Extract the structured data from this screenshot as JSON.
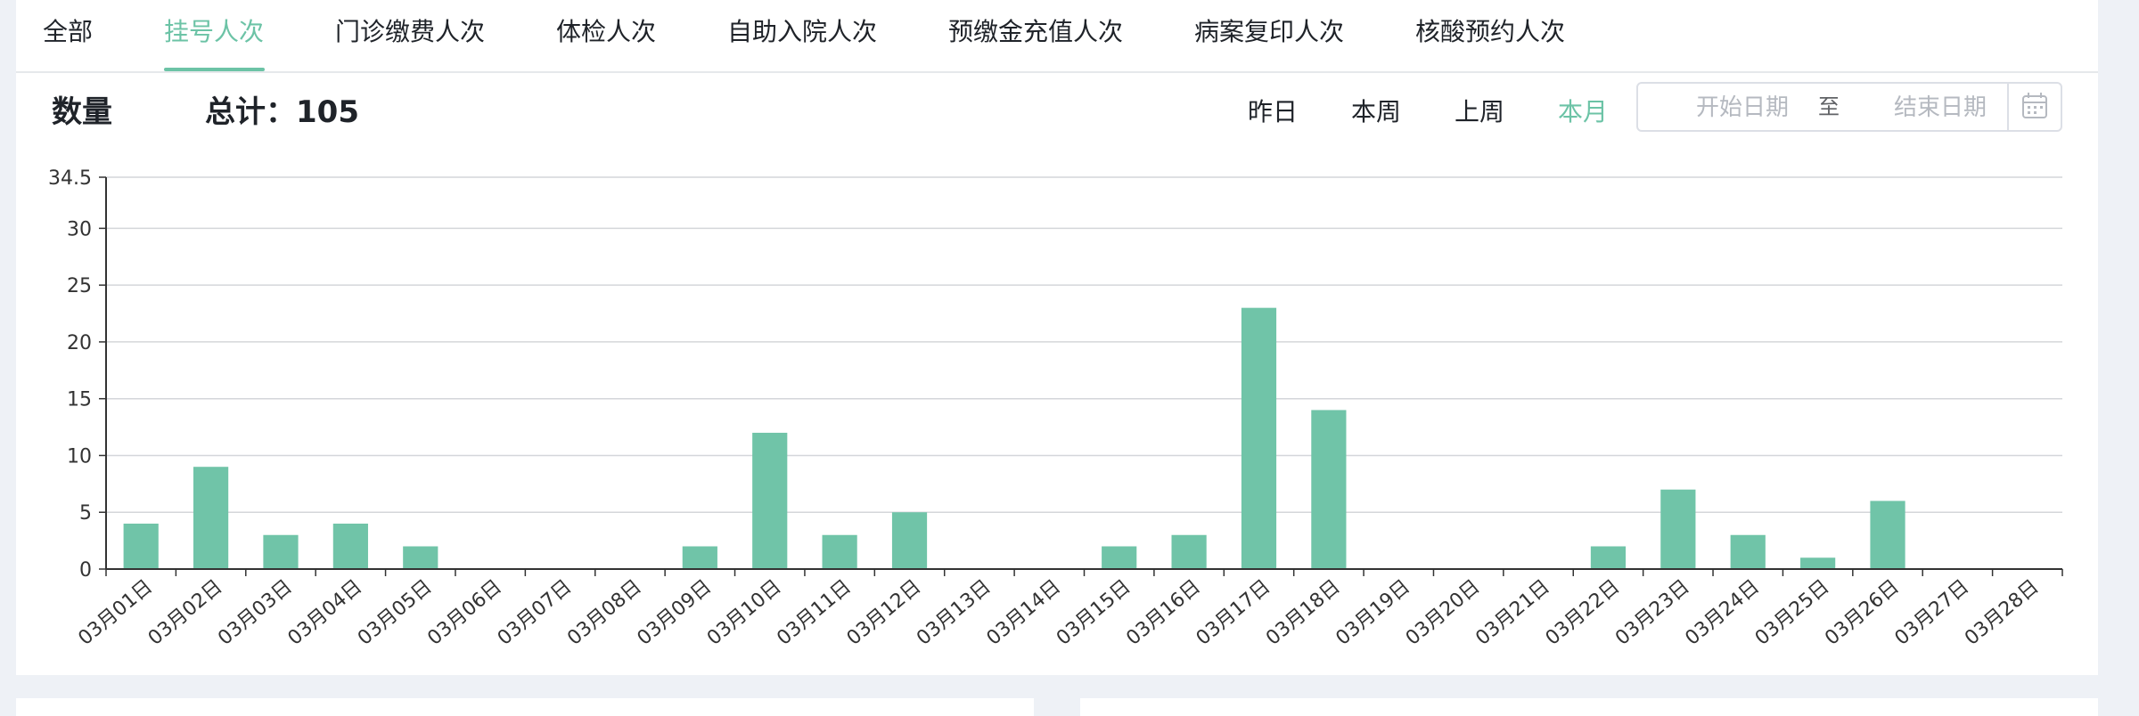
{
  "tabs": [
    {
      "label": "全部",
      "active": false
    },
    {
      "label": "挂号人次",
      "active": true
    },
    {
      "label": "门诊缴费人次",
      "active": false
    },
    {
      "label": "体检人次",
      "active": false
    },
    {
      "label": "自助入院人次",
      "active": false
    },
    {
      "label": "预缴金充值人次",
      "active": false
    },
    {
      "label": "病案复印人次",
      "active": false
    },
    {
      "label": "核酸预约人次",
      "active": false
    }
  ],
  "summary": {
    "quantity_label": "数量",
    "total_label": "总计：105"
  },
  "ranges": [
    {
      "label": "昨日",
      "active": false
    },
    {
      "label": "本周",
      "active": false
    },
    {
      "label": "上周",
      "active": false
    },
    {
      "label": "本月",
      "active": true
    }
  ],
  "date_range": {
    "start_placeholder": "开始日期",
    "separator": "至",
    "end_placeholder": "结束日期"
  },
  "icons": {
    "calendar": "calendar-icon"
  },
  "colors": {
    "accent": "#6cc3a6",
    "bar": "#70c4a8",
    "grid": "#d4d6da",
    "axis": "#333333"
  },
  "chart_data": {
    "type": "bar",
    "categories": [
      "03月01日",
      "03月02日",
      "03月03日",
      "03月04日",
      "03月05日",
      "03月06日",
      "03月07日",
      "03月08日",
      "03月09日",
      "03月10日",
      "03月11日",
      "03月12日",
      "03月13日",
      "03月14日",
      "03月15日",
      "03月16日",
      "03月17日",
      "03月18日",
      "03月19日",
      "03月20日",
      "03月21日",
      "03月22日",
      "03月23日",
      "03月24日",
      "03月25日",
      "03月26日",
      "03月27日",
      "03月28日"
    ],
    "values": [
      4,
      9,
      3,
      4,
      2,
      0,
      0,
      0,
      2,
      12,
      3,
      5,
      0,
      0,
      2,
      3,
      23,
      14,
      0,
      0,
      0,
      2,
      7,
      3,
      1,
      6,
      0,
      0
    ],
    "yticks": [
      0,
      5,
      10,
      15,
      20,
      25,
      30,
      34.5
    ],
    "ylim": [
      0,
      34.5
    ],
    "grid": true
  }
}
